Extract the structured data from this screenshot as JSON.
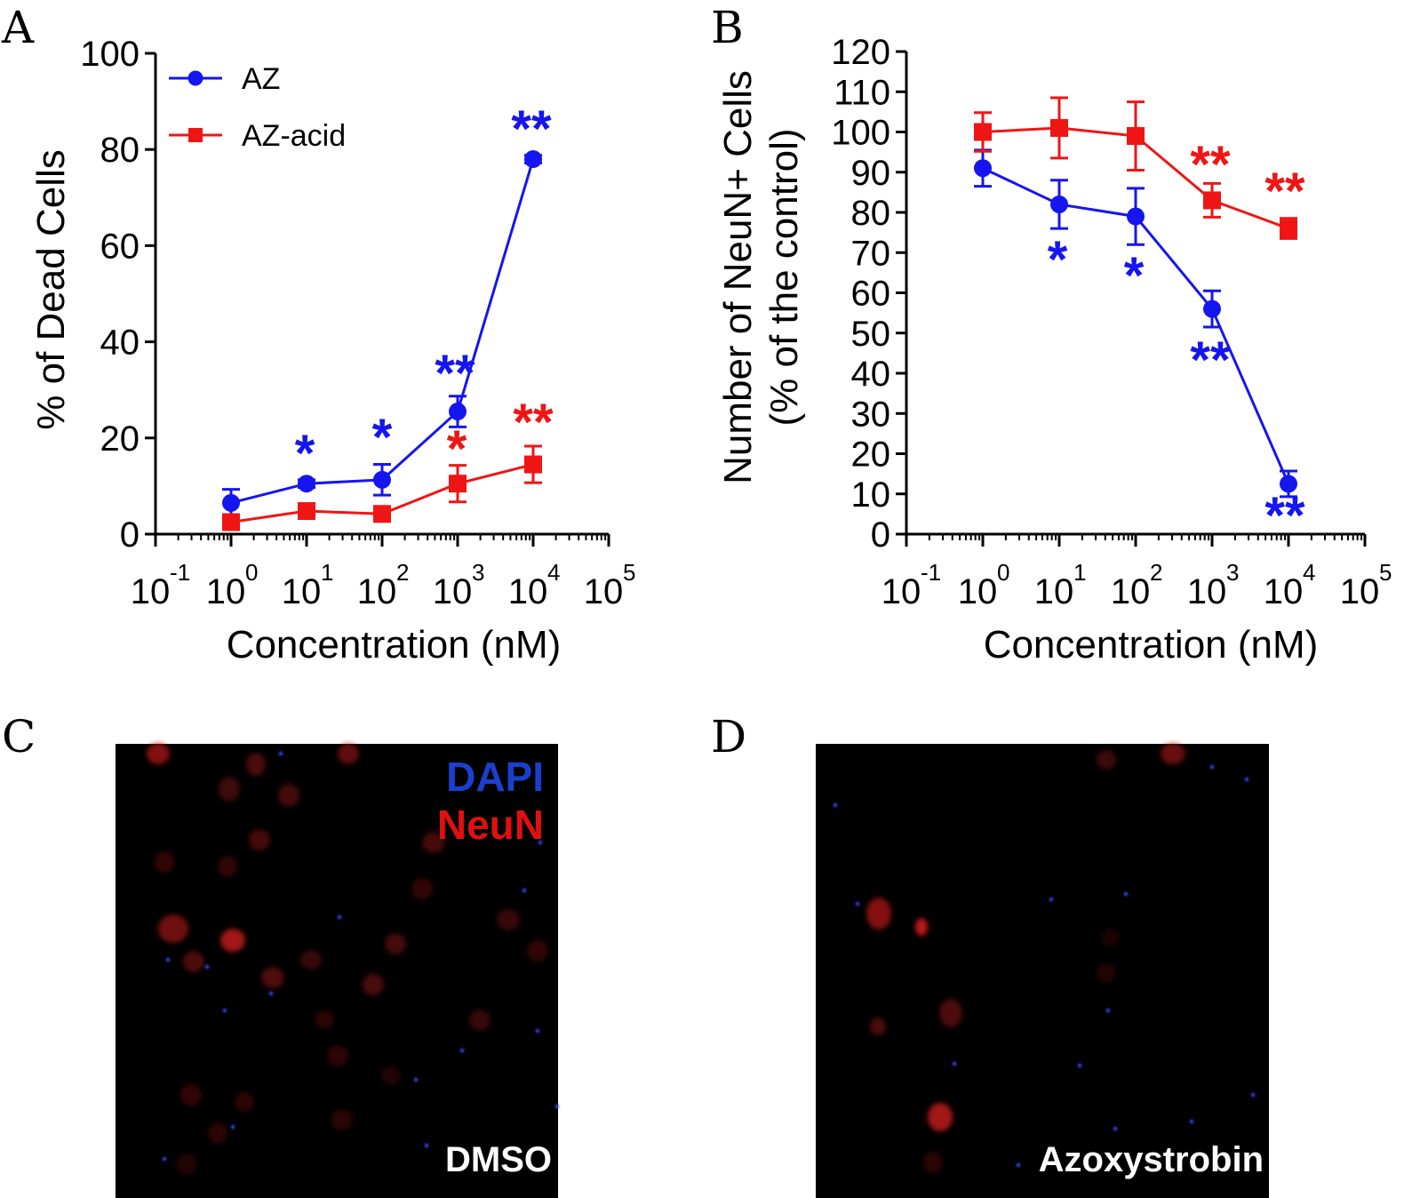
{
  "colors": {
    "az": "#1515f0",
    "az_acid": "#f01515",
    "dapi": "#1a3fd0",
    "neun": "#e01010"
  },
  "chart_data": [
    {
      "panel": "A",
      "type": "line",
      "xscale": "log10",
      "xlim": [
        -1,
        5
      ],
      "ylim": [
        0,
        100
      ],
      "xlabel": "Concentration (nM)",
      "ylabel": "% of Dead Cells",
      "xticks": [
        {
          "base": "10",
          "exp": "-1"
        },
        {
          "base": "10",
          "exp": "0"
        },
        {
          "base": "10",
          "exp": "1"
        },
        {
          "base": "10",
          "exp": "2"
        },
        {
          "base": "10",
          "exp": "3"
        },
        {
          "base": "10",
          "exp": "4"
        },
        {
          "base": "10",
          "exp": "5"
        }
      ],
      "yticks": [
        "0",
        "20",
        "40",
        "60",
        "80",
        "100"
      ],
      "legend_position": "top-left",
      "series": [
        {
          "name": "AZ",
          "color_key": "az",
          "marker": "circle",
          "x": [
            1,
            10,
            100,
            1000,
            10000
          ],
          "y": [
            6.5,
            10.5,
            11.3,
            25.5,
            78
          ],
          "err": [
            2.8,
            0.8,
            3.2,
            3.2,
            0.8
          ],
          "sig": [
            "",
            "*",
            "*",
            "**",
            "**"
          ]
        },
        {
          "name": "AZ-acid",
          "color_key": "az_acid",
          "marker": "square",
          "x": [
            1,
            10,
            100,
            1000,
            10000
          ],
          "y": [
            2.5,
            4.8,
            4.2,
            10.5,
            14.5
          ],
          "err": [
            1.5,
            0.8,
            0.8,
            3.8,
            3.8
          ],
          "sig": [
            "",
            "",
            "",
            "*",
            "**"
          ]
        }
      ]
    },
    {
      "panel": "B",
      "type": "line",
      "xscale": "log10",
      "xlim": [
        -1,
        5
      ],
      "ylim": [
        0,
        120
      ],
      "xlabel": "Concentration (nM)",
      "ylabel": "Number of NeuN+ Cells",
      "ylabel2": "(% of  the control)",
      "xticks": [
        {
          "base": "10",
          "exp": "-1"
        },
        {
          "base": "10",
          "exp": "0"
        },
        {
          "base": "10",
          "exp": "1"
        },
        {
          "base": "10",
          "exp": "2"
        },
        {
          "base": "10",
          "exp": "3"
        },
        {
          "base": "10",
          "exp": "4"
        },
        {
          "base": "10",
          "exp": "5"
        }
      ],
      "yticks": [
        "0",
        "10",
        "20",
        "30",
        "40",
        "50",
        "60",
        "70",
        "80",
        "90",
        "100",
        "110",
        "120"
      ],
      "series": [
        {
          "name": "AZ",
          "color_key": "az",
          "marker": "circle",
          "x": [
            1,
            10,
            100,
            1000,
            10000
          ],
          "y": [
            91,
            82,
            79,
            56,
            12.5
          ],
          "err": [
            4.5,
            6,
            7,
            4.5,
            3.2
          ],
          "sig": [
            "",
            "*",
            "*",
            "**",
            "**"
          ]
        },
        {
          "name": "AZ-acid",
          "color_key": "az_acid",
          "marker": "square",
          "x": [
            1,
            10,
            100,
            1000,
            10000
          ],
          "y": [
            100,
            101,
            99,
            83,
            76
          ],
          "err": [
            4.8,
            7.5,
            8.5,
            4.2,
            2.5
          ],
          "sig": [
            "",
            "",
            "",
            "**",
            "**"
          ]
        }
      ]
    }
  ],
  "panel_labels": {
    "a": "A",
    "b": "B",
    "c": "C",
    "d": "D"
  },
  "micrographs": {
    "c": {
      "label": "DMSO",
      "legend_dapi": "DAPI",
      "legend_neun": "NeuN"
    },
    "d": {
      "label": "Azoxystrobin"
    }
  }
}
